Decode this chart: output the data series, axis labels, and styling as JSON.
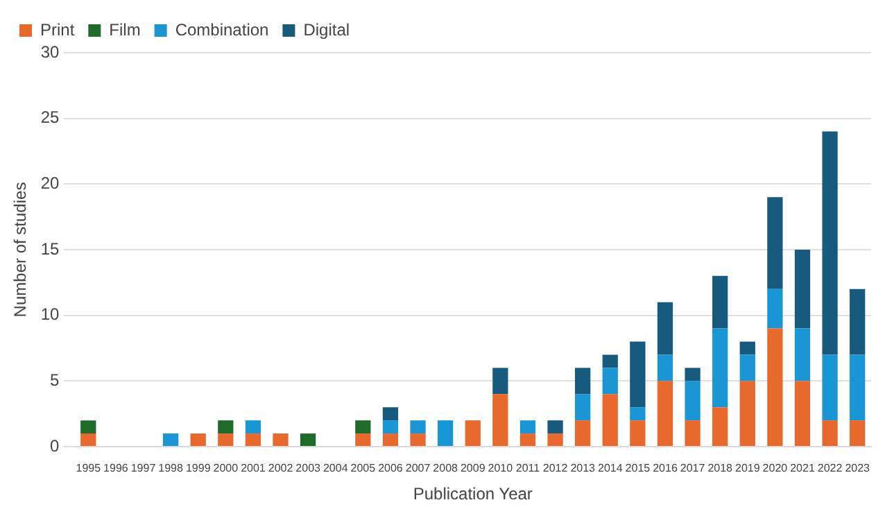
{
  "chart_data": {
    "type": "bar",
    "stacked": true,
    "xlabel": "Publication Year",
    "ylabel": "Number of studies",
    "categories": [
      "1995",
      "1996",
      "1997",
      "1998",
      "1999",
      "2000",
      "2001",
      "2002",
      "2003",
      "2004",
      "2005",
      "2006",
      "2007",
      "2008",
      "2009",
      "2010",
      "2011",
      "2012",
      "2013",
      "2014",
      "2015",
      "2016",
      "2017",
      "2018",
      "2019",
      "2020",
      "2021",
      "2022",
      "2023"
    ],
    "series": [
      {
        "name": "Print",
        "color": "#e8692e",
        "values": [
          1,
          0,
          0,
          0,
          1,
          1,
          1,
          1,
          0,
          0,
          1,
          1,
          1,
          0,
          2,
          4,
          1,
          1,
          2,
          4,
          2,
          5,
          2,
          3,
          5,
          9,
          5,
          2,
          2
        ]
      },
      {
        "name": "Film",
        "color": "#1e6b2a",
        "values": [
          1,
          0,
          0,
          0,
          0,
          1,
          0,
          0,
          1,
          0,
          1,
          0,
          0,
          0,
          0,
          0,
          0,
          0,
          0,
          0,
          0,
          0,
          0,
          0,
          0,
          0,
          0,
          0,
          0
        ]
      },
      {
        "name": "Combination",
        "color": "#1a96d4",
        "values": [
          0,
          0,
          0,
          1,
          0,
          0,
          1,
          0,
          0,
          0,
          0,
          1,
          1,
          2,
          0,
          0,
          1,
          0,
          2,
          2,
          1,
          2,
          3,
          6,
          2,
          3,
          4,
          5,
          5
        ]
      },
      {
        "name": "Digital",
        "color": "#185a7d",
        "values": [
          0,
          0,
          0,
          0,
          0,
          0,
          0,
          0,
          0,
          0,
          0,
          1,
          0,
          0,
          0,
          2,
          0,
          1,
          2,
          1,
          5,
          4,
          1,
          4,
          1,
          7,
          6,
          17,
          5
        ]
      }
    ],
    "ylim": [
      0,
      30
    ],
    "yticks": [
      0,
      5,
      10,
      15,
      20,
      25,
      30
    ],
    "grid": "y",
    "legend": "top left"
  }
}
